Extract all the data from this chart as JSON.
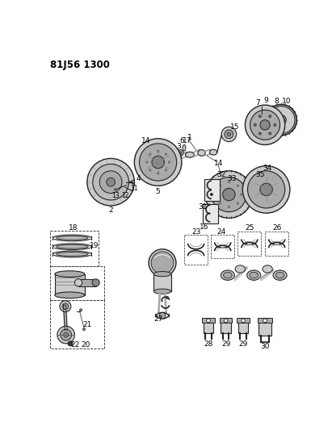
{
  "title": "81J56 1300",
  "bg_color": "#ffffff",
  "lc": "#222222",
  "fig_width": 4.11,
  "fig_height": 5.33,
  "dpi": 100,
  "gray_light": "#cccccc",
  "gray_mid": "#aaaaaa",
  "gray_dark": "#888888"
}
